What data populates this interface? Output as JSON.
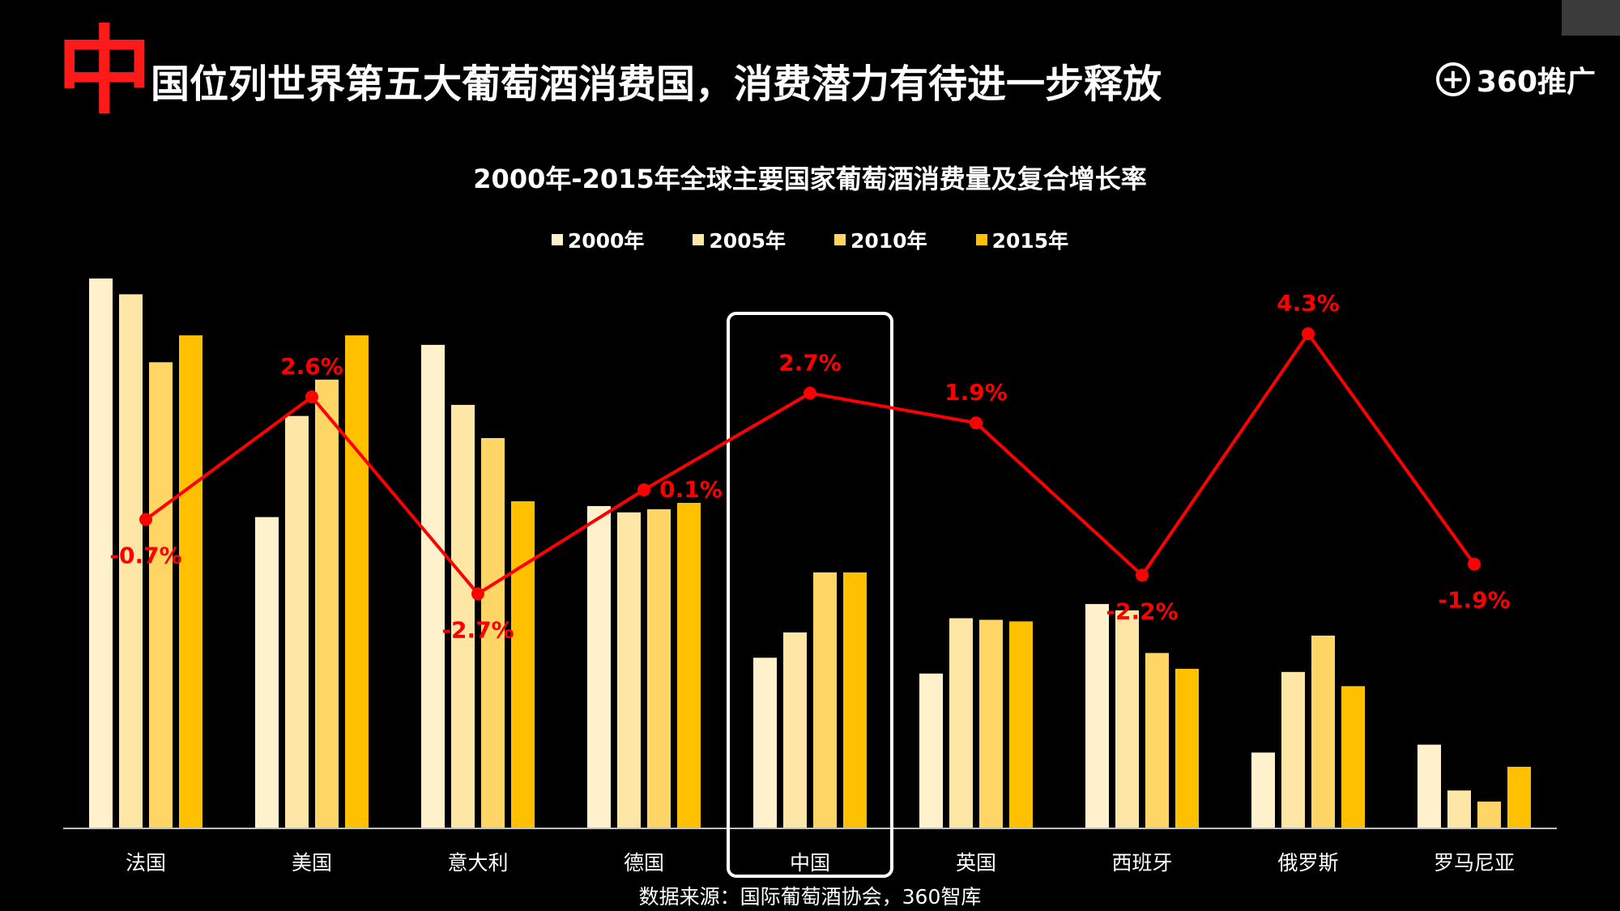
{
  "header": {
    "title_lead": "中",
    "title_rest": "国位列世界第五大葡萄酒消费国，消费潜力有待进一步释放",
    "logo_icon": "plus-circle-icon",
    "logo_text": "360推广"
  },
  "footer": {
    "source": "数据来源：国际葡萄酒协会，360智库"
  },
  "colors": {
    "series": [
      "#fff1cc",
      "#fee7a6",
      "#ffd566",
      "#ffc000"
    ],
    "line": "#ff0000",
    "highlight_box": "#ffffff",
    "axis": "#bfbfbf"
  },
  "chart_data": {
    "type": "bar",
    "title": "2000年-2015年全球主要国家葡萄酒消费量及复合增长率",
    "categories": [
      "法国",
      "美国",
      "意大利",
      "德国",
      "中国",
      "英国",
      "西班牙",
      "俄罗斯",
      "罗马尼亚"
    ],
    "series": [
      {
        "name": "2000年",
        "values": [
          34.8,
          19.7,
          30.6,
          20.4,
          10.8,
          9.8,
          14.2,
          4.8,
          5.3
        ]
      },
      {
        "name": "2005年",
        "values": [
          33.8,
          26.1,
          26.8,
          20.0,
          12.4,
          13.3,
          13.8,
          9.9,
          2.4
        ]
      },
      {
        "name": "2010年",
        "values": [
          29.5,
          28.4,
          24.7,
          20.2,
          16.2,
          13.2,
          11.1,
          12.2,
          1.7
        ]
      },
      {
        "name": "2015年",
        "values": [
          31.2,
          31.2,
          20.7,
          20.6,
          16.2,
          13.1,
          10.1,
          9.0,
          3.9
        ]
      }
    ],
    "growth_rate": {
      "values": [
        -0.7,
        2.6,
        -2.7,
        0.1,
        2.7,
        1.9,
        -2.2,
        4.3,
        -1.9
      ],
      "labels": [
        "-0.7%",
        "2.6%",
        "-2.7%",
        "0.1%",
        "2.7%",
        "1.9%",
        "-2.2%",
        "4.3%",
        "-1.9%"
      ],
      "range": [
        -3.5,
        5.0
      ]
    },
    "ylim": [
      0,
      35
    ],
    "highlight_category": "中国",
    "legend_position": "top-center",
    "grid": false
  }
}
